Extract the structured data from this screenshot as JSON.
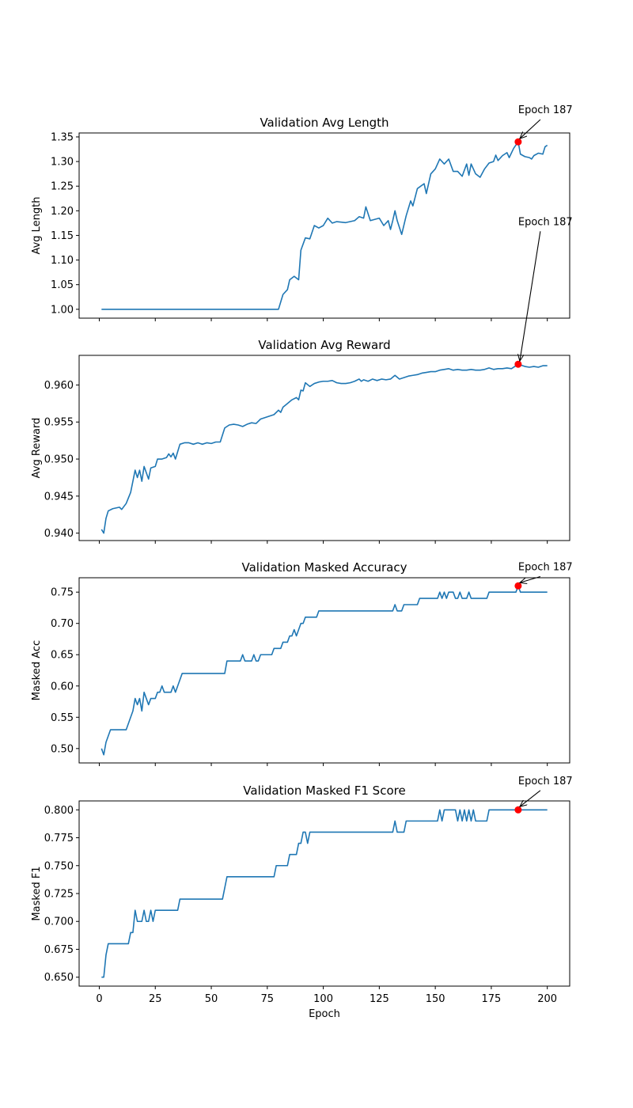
{
  "colors": {
    "line": "#1f77b4",
    "marker": "#ff0000",
    "axis": "#000000"
  },
  "chart_data": [
    {
      "type": "line",
      "title": "Validation Avg Length",
      "xlabel": "",
      "ylabel": "Avg Length",
      "xlim": [
        -9,
        210
      ],
      "ylim": [
        0.982,
        1.358
      ],
      "xticks": [
        0,
        25,
        50,
        75,
        100,
        125,
        150,
        175,
        200
      ],
      "show_xticklabels": false,
      "yticks": [
        1.0,
        1.05,
        1.1,
        1.15,
        1.2,
        1.25,
        1.3,
        1.35
      ],
      "ytick_labels": [
        "1.00",
        "1.05",
        "1.10",
        "1.15",
        "1.20",
        "1.25",
        "1.30",
        "1.35"
      ],
      "points": [
        [
          1,
          1.0
        ],
        [
          80,
          1.0
        ],
        [
          82,
          1.03
        ],
        [
          84,
          1.04
        ],
        [
          85,
          1.06
        ],
        [
          87,
          1.067
        ],
        [
          89,
          1.06
        ],
        [
          90,
          1.12
        ],
        [
          92,
          1.145
        ],
        [
          94,
          1.143
        ],
        [
          96,
          1.17
        ],
        [
          98,
          1.165
        ],
        [
          100,
          1.17
        ],
        [
          102,
          1.185
        ],
        [
          104,
          1.175
        ],
        [
          106,
          1.178
        ],
        [
          110,
          1.176
        ],
        [
          114,
          1.18
        ],
        [
          116,
          1.188
        ],
        [
          118,
          1.185
        ],
        [
          119,
          1.208
        ],
        [
          121,
          1.18
        ],
        [
          125,
          1.185
        ],
        [
          127,
          1.17
        ],
        [
          129,
          1.18
        ],
        [
          130,
          1.162
        ],
        [
          131,
          1.18
        ],
        [
          132,
          1.2
        ],
        [
          133,
          1.18
        ],
        [
          135,
          1.152
        ],
        [
          137,
          1.19
        ],
        [
          139,
          1.22
        ],
        [
          140,
          1.21
        ],
        [
          142,
          1.245
        ],
        [
          145,
          1.255
        ],
        [
          146,
          1.235
        ],
        [
          148,
          1.275
        ],
        [
          150,
          1.285
        ],
        [
          152,
          1.305
        ],
        [
          154,
          1.295
        ],
        [
          156,
          1.305
        ],
        [
          158,
          1.28
        ],
        [
          160,
          1.28
        ],
        [
          162,
          1.27
        ],
        [
          164,
          1.295
        ],
        [
          165,
          1.272
        ],
        [
          166,
          1.295
        ],
        [
          168,
          1.275
        ],
        [
          170,
          1.268
        ],
        [
          172,
          1.285
        ],
        [
          174,
          1.297
        ],
        [
          176,
          1.3
        ],
        [
          177,
          1.313
        ],
        [
          178,
          1.302
        ],
        [
          180,
          1.312
        ],
        [
          182,
          1.318
        ],
        [
          183,
          1.308
        ],
        [
          185,
          1.327
        ],
        [
          187,
          1.34
        ],
        [
          188,
          1.315
        ],
        [
          190,
          1.31
        ],
        [
          192,
          1.308
        ],
        [
          193,
          1.305
        ],
        [
          194,
          1.312
        ],
        [
          196,
          1.317
        ],
        [
          198,
          1.315
        ],
        [
          199,
          1.33
        ],
        [
          200,
          1.333
        ]
      ],
      "marker": {
        "x": 187,
        "y": 1.34
      },
      "annotations": [
        {
          "text": "Epoch 187",
          "text_x": 187,
          "text_y": 1.398,
          "arrow_to": [
            187,
            1.34
          ]
        }
      ]
    },
    {
      "type": "line",
      "title": "Validation Avg Reward",
      "xlabel": "",
      "ylabel": "Avg Reward",
      "xlim": [
        -9,
        210
      ],
      "ylim": [
        0.939,
        0.964
      ],
      "xticks": [
        0,
        25,
        50,
        75,
        100,
        125,
        150,
        175,
        200
      ],
      "show_xticklabels": false,
      "yticks": [
        0.94,
        0.945,
        0.95,
        0.955,
        0.96
      ],
      "ytick_labels": [
        "0.940",
        "0.945",
        "0.950",
        "0.955",
        "0.960"
      ],
      "points": [
        [
          1,
          0.9405
        ],
        [
          2,
          0.94
        ],
        [
          3,
          0.942
        ],
        [
          4,
          0.943
        ],
        [
          6,
          0.9433
        ],
        [
          9,
          0.9435
        ],
        [
          10,
          0.9432
        ],
        [
          12,
          0.944
        ],
        [
          14,
          0.9455
        ],
        [
          16,
          0.9485
        ],
        [
          17,
          0.9475
        ],
        [
          18,
          0.9485
        ],
        [
          19,
          0.947
        ],
        [
          20,
          0.949
        ],
        [
          22,
          0.9473
        ],
        [
          23,
          0.9488
        ],
        [
          25,
          0.949
        ],
        [
          26,
          0.95
        ],
        [
          28,
          0.95
        ],
        [
          30,
          0.9502
        ],
        [
          31,
          0.9507
        ],
        [
          32,
          0.9503
        ],
        [
          33,
          0.9508
        ],
        [
          34,
          0.95
        ],
        [
          36,
          0.952
        ],
        [
          38,
          0.9522
        ],
        [
          40,
          0.9522
        ],
        [
          42,
          0.952
        ],
        [
          44,
          0.9522
        ],
        [
          46,
          0.952
        ],
        [
          48,
          0.9522
        ],
        [
          50,
          0.9521
        ],
        [
          52,
          0.9523
        ],
        [
          54,
          0.9523
        ],
        [
          56,
          0.9542
        ],
        [
          58,
          0.9546
        ],
        [
          60,
          0.9547
        ],
        [
          62,
          0.9546
        ],
        [
          64,
          0.9544
        ],
        [
          66,
          0.9547
        ],
        [
          68,
          0.9549
        ],
        [
          70,
          0.9548
        ],
        [
          72,
          0.9554
        ],
        [
          74,
          0.9556
        ],
        [
          76,
          0.9558
        ],
        [
          78,
          0.956
        ],
        [
          80,
          0.9566
        ],
        [
          81,
          0.9563
        ],
        [
          82,
          0.957
        ],
        [
          84,
          0.9575
        ],
        [
          86,
          0.958
        ],
        [
          88,
          0.9583
        ],
        [
          89,
          0.958
        ],
        [
          90,
          0.9593
        ],
        [
          91,
          0.9592
        ],
        [
          92,
          0.9603
        ],
        [
          94,
          0.9598
        ],
        [
          96,
          0.9602
        ],
        [
          98,
          0.9604
        ],
        [
          100,
          0.9605
        ],
        [
          102,
          0.9605
        ],
        [
          104,
          0.9606
        ],
        [
          106,
          0.9603
        ],
        [
          108,
          0.9602
        ],
        [
          110,
          0.9602
        ],
        [
          112,
          0.9603
        ],
        [
          114,
          0.9605
        ],
        [
          116,
          0.9608
        ],
        [
          117,
          0.9605
        ],
        [
          118,
          0.9607
        ],
        [
          120,
          0.9605
        ],
        [
          122,
          0.9608
        ],
        [
          124,
          0.9606
        ],
        [
          126,
          0.9608
        ],
        [
          128,
          0.9607
        ],
        [
          130,
          0.9608
        ],
        [
          132,
          0.9613
        ],
        [
          134,
          0.9608
        ],
        [
          136,
          0.961
        ],
        [
          138,
          0.9612
        ],
        [
          140,
          0.9613
        ],
        [
          142,
          0.9614
        ],
        [
          144,
          0.9616
        ],
        [
          146,
          0.9617
        ],
        [
          148,
          0.9618
        ],
        [
          150,
          0.9618
        ],
        [
          152,
          0.962
        ],
        [
          154,
          0.9621
        ],
        [
          156,
          0.9622
        ],
        [
          158,
          0.962
        ],
        [
          160,
          0.9621
        ],
        [
          162,
          0.962
        ],
        [
          164,
          0.962
        ],
        [
          166,
          0.9621
        ],
        [
          168,
          0.962
        ],
        [
          170,
          0.962
        ],
        [
          172,
          0.9621
        ],
        [
          174,
          0.9623
        ],
        [
          176,
          0.9621
        ],
        [
          178,
          0.9622
        ],
        [
          180,
          0.9622
        ],
        [
          182,
          0.9623
        ],
        [
          184,
          0.9622
        ],
        [
          187,
          0.9628
        ],
        [
          190,
          0.9625
        ],
        [
          192,
          0.9624
        ],
        [
          194,
          0.9625
        ],
        [
          196,
          0.9624
        ],
        [
          198,
          0.9626
        ],
        [
          200,
          0.9626
        ]
      ],
      "marker": {
        "x": 187,
        "y": 0.9628
      },
      "annotations": [
        {
          "text": "Epoch 187",
          "text_x": 187,
          "text_y": 0.9816,
          "arrow_to": [
            187,
            0.9628
          ]
        }
      ]
    },
    {
      "type": "line",
      "title": "Validation Masked Accuracy",
      "xlabel": "",
      "ylabel": "Masked Acc",
      "xlim": [
        -9,
        210
      ],
      "ylim": [
        0.477,
        0.773
      ],
      "xticks": [
        0,
        25,
        50,
        75,
        100,
        125,
        150,
        175,
        200
      ],
      "show_xticklabels": false,
      "yticks": [
        0.5,
        0.55,
        0.6,
        0.65,
        0.7,
        0.75
      ],
      "ytick_labels": [
        "0.50",
        "0.55",
        "0.60",
        "0.65",
        "0.70",
        "0.75"
      ],
      "points": [
        [
          1,
          0.5
        ],
        [
          2,
          0.49
        ],
        [
          3,
          0.51
        ],
        [
          4,
          0.52
        ],
        [
          5,
          0.53
        ],
        [
          12,
          0.53
        ],
        [
          14,
          0.55
        ],
        [
          15,
          0.56
        ],
        [
          16,
          0.58
        ],
        [
          17,
          0.57
        ],
        [
          18,
          0.58
        ],
        [
          19,
          0.56
        ],
        [
          20,
          0.59
        ],
        [
          21,
          0.58
        ],
        [
          22,
          0.57
        ],
        [
          23,
          0.58
        ],
        [
          25,
          0.58
        ],
        [
          26,
          0.59
        ],
        [
          27,
          0.59
        ],
        [
          28,
          0.6
        ],
        [
          29,
          0.59
        ],
        [
          32,
          0.59
        ],
        [
          33,
          0.6
        ],
        [
          34,
          0.59
        ],
        [
          35,
          0.6
        ],
        [
          36,
          0.61
        ],
        [
          37,
          0.62
        ],
        [
          56,
          0.62
        ],
        [
          57,
          0.64
        ],
        [
          63,
          0.64
        ],
        [
          64,
          0.65
        ],
        [
          65,
          0.64
        ],
        [
          68,
          0.64
        ],
        [
          69,
          0.65
        ],
        [
          70,
          0.64
        ],
        [
          71,
          0.64
        ],
        [
          72,
          0.65
        ],
        [
          77,
          0.65
        ],
        [
          78,
          0.66
        ],
        [
          81,
          0.66
        ],
        [
          82,
          0.67
        ],
        [
          84,
          0.67
        ],
        [
          85,
          0.68
        ],
        [
          86,
          0.68
        ],
        [
          87,
          0.69
        ],
        [
          88,
          0.68
        ],
        [
          89,
          0.69
        ],
        [
          90,
          0.7
        ],
        [
          91,
          0.7
        ],
        [
          92,
          0.71
        ],
        [
          97,
          0.71
        ],
        [
          98,
          0.72
        ],
        [
          131,
          0.72
        ],
        [
          132,
          0.73
        ],
        [
          133,
          0.72
        ],
        [
          135,
          0.72
        ],
        [
          136,
          0.73
        ],
        [
          142,
          0.73
        ],
        [
          143,
          0.74
        ],
        [
          151,
          0.74
        ],
        [
          152,
          0.75
        ],
        [
          153,
          0.74
        ],
        [
          154,
          0.75
        ],
        [
          155,
          0.74
        ],
        [
          156,
          0.75
        ],
        [
          158,
          0.75
        ],
        [
          159,
          0.74
        ],
        [
          160,
          0.74
        ],
        [
          161,
          0.75
        ],
        [
          162,
          0.74
        ],
        [
          164,
          0.74
        ],
        [
          165,
          0.75
        ],
        [
          166,
          0.74
        ],
        [
          173,
          0.74
        ],
        [
          174,
          0.75
        ],
        [
          186,
          0.75
        ],
        [
          187,
          0.76
        ],
        [
          188,
          0.75
        ],
        [
          200,
          0.75
        ]
      ],
      "marker": {
        "x": 187,
        "y": 0.76
      },
      "annotations": [
        {
          "text": "Epoch 187",
          "text_x": 187,
          "text_y": 0.785,
          "arrow_to": [
            187,
            0.76
          ]
        }
      ]
    },
    {
      "type": "line",
      "title": "Validation Masked F1 Score",
      "xlabel": "Epoch",
      "ylabel": "Masked F1",
      "xlim": [
        -9,
        210
      ],
      "ylim": [
        0.642,
        0.808
      ],
      "xticks": [
        0,
        25,
        50,
        75,
        100,
        125,
        150,
        175,
        200
      ],
      "show_xticklabels": true,
      "xtick_labels": [
        "0",
        "25",
        "50",
        "75",
        "100",
        "125",
        "150",
        "175",
        "200"
      ],
      "yticks": [
        0.65,
        0.675,
        0.7,
        0.725,
        0.75,
        0.775,
        0.8
      ],
      "ytick_labels": [
        "0.650",
        "0.675",
        "0.700",
        "0.725",
        "0.750",
        "0.775",
        "0.800"
      ],
      "points": [
        [
          1,
          0.65
        ],
        [
          2,
          0.65
        ],
        [
          3,
          0.67
        ],
        [
          4,
          0.68
        ],
        [
          13,
          0.68
        ],
        [
          14,
          0.69
        ],
        [
          15,
          0.69
        ],
        [
          16,
          0.71
        ],
        [
          17,
          0.7
        ],
        [
          19,
          0.7
        ],
        [
          20,
          0.71
        ],
        [
          21,
          0.7
        ],
        [
          22,
          0.7
        ],
        [
          23,
          0.71
        ],
        [
          24,
          0.7
        ],
        [
          25,
          0.71
        ],
        [
          35,
          0.71
        ],
        [
          36,
          0.72
        ],
        [
          55,
          0.72
        ],
        [
          57,
          0.74
        ],
        [
          78,
          0.74
        ],
        [
          79,
          0.75
        ],
        [
          84,
          0.75
        ],
        [
          85,
          0.76
        ],
        [
          88,
          0.76
        ],
        [
          89,
          0.77
        ],
        [
          90,
          0.77
        ],
        [
          91,
          0.78
        ],
        [
          92,
          0.78
        ],
        [
          93,
          0.77
        ],
        [
          94,
          0.78
        ],
        [
          131,
          0.78
        ],
        [
          132,
          0.79
        ],
        [
          133,
          0.78
        ],
        [
          136,
          0.78
        ],
        [
          137,
          0.79
        ],
        [
          151,
          0.79
        ],
        [
          152,
          0.8
        ],
        [
          153,
          0.79
        ],
        [
          154,
          0.8
        ],
        [
          159,
          0.8
        ],
        [
          160,
          0.79
        ],
        [
          161,
          0.8
        ],
        [
          162,
          0.79
        ],
        [
          163,
          0.8
        ],
        [
          164,
          0.79
        ],
        [
          165,
          0.8
        ],
        [
          166,
          0.79
        ],
        [
          167,
          0.8
        ],
        [
          168,
          0.79
        ],
        [
          173,
          0.79
        ],
        [
          174,
          0.8
        ],
        [
          200,
          0.8
        ]
      ],
      "marker": {
        "x": 187,
        "y": 0.8
      },
      "annotations": [
        {
          "text": "Epoch 187",
          "text_x": 187,
          "text_y": 0.823,
          "arrow_to": [
            187,
            0.8
          ]
        }
      ]
    }
  ]
}
